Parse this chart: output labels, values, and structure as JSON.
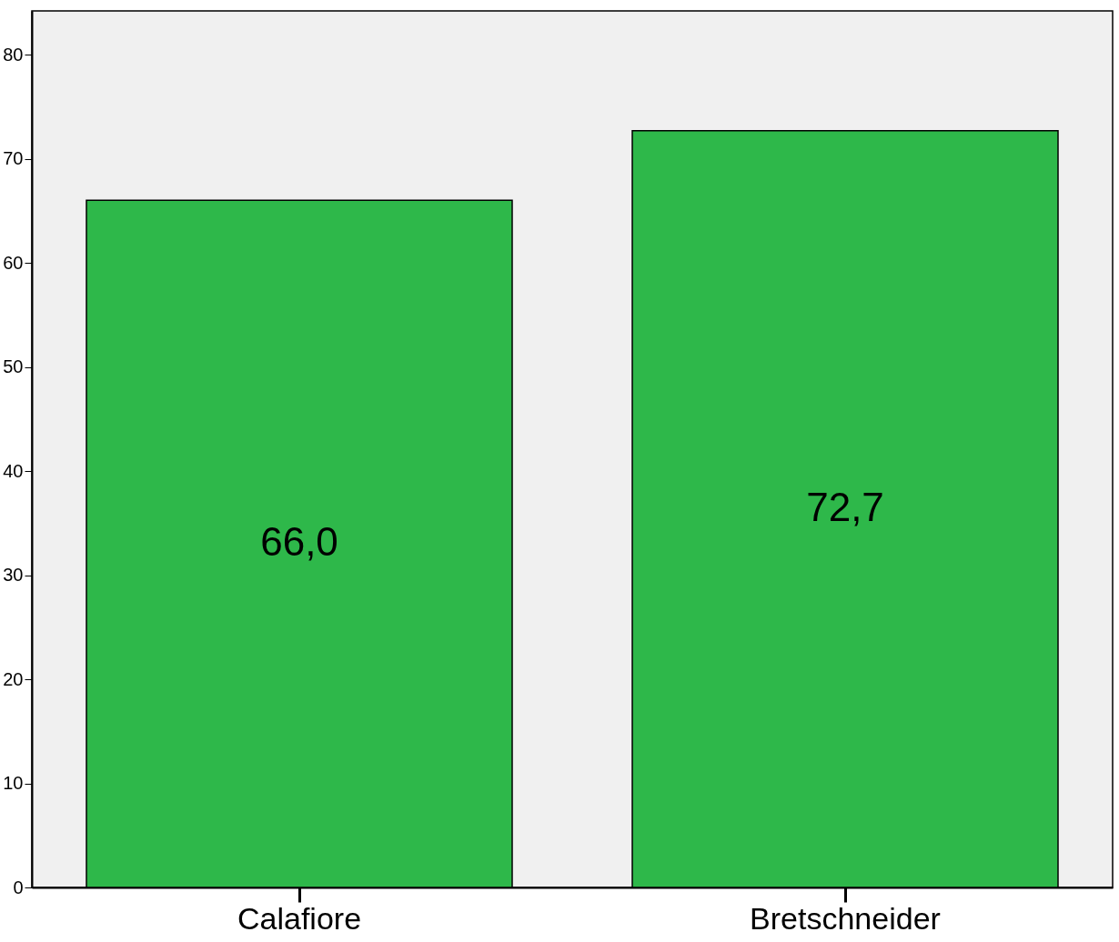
{
  "chart_data": {
    "type": "bar",
    "categories": [
      "Calafiore",
      "Bretschneider"
    ],
    "values": [
      66.0,
      72.7
    ],
    "color": "#2eb84a",
    "value_labels": [
      "66,0",
      "72,7"
    ],
    "ylim": [
      0,
      84.2
    ],
    "yticks": [
      0,
      10,
      20,
      30,
      40,
      50,
      60,
      70,
      80
    ],
    "grid": false
  }
}
